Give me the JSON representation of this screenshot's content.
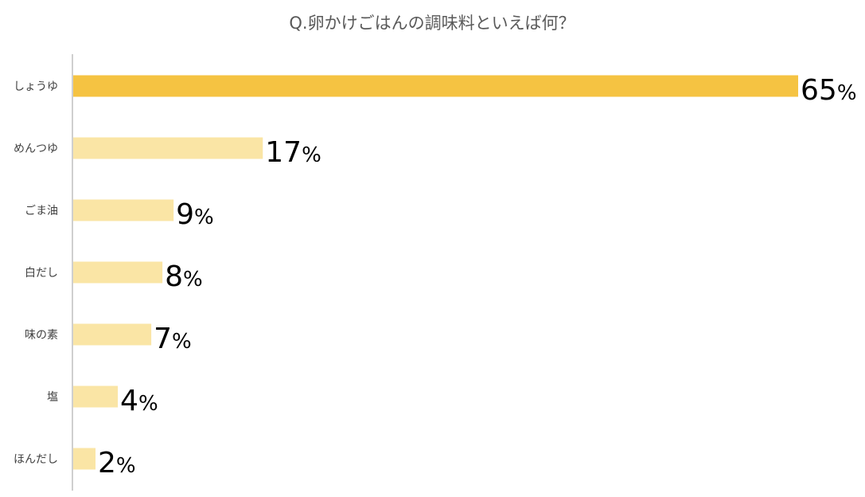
{
  "chart_data": {
    "type": "bar",
    "orientation": "horizontal",
    "title": "Q.卵かけごはんの調味料といえば何？",
    "categories": [
      "しょうゆ",
      "めんつゆ",
      "ごま油",
      "白だし",
      "味の素",
      "塩",
      "ほんだし"
    ],
    "values": [
      65,
      17,
      9,
      8,
      7,
      4,
      2
    ],
    "unit": "%",
    "xlim": [
      0,
      65
    ],
    "grid": false,
    "legend": "none",
    "colors": {
      "highlight": "#F5C342",
      "default": "#FAE5A5",
      "axis": "#BFBFBF",
      "title": "#595959",
      "category_text": "#404040",
      "value_text": "#000000"
    }
  }
}
